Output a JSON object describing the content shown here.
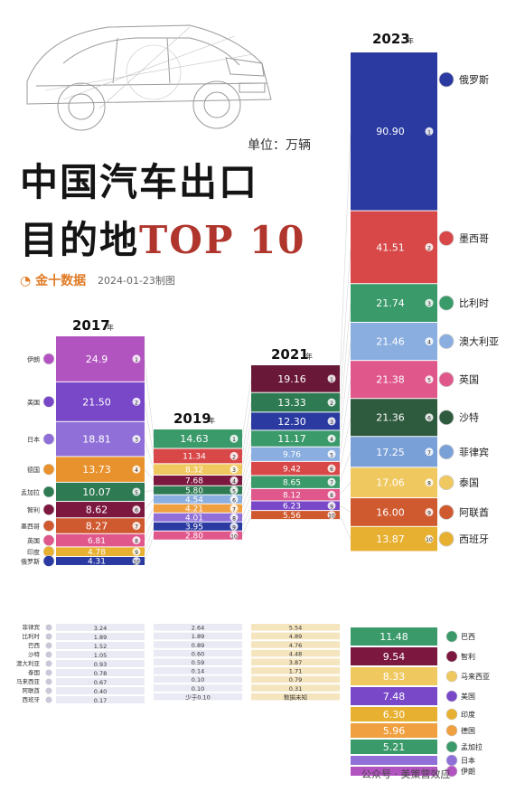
{
  "title_line1": "中国汽车出口",
  "title_line2a": "目的地",
  "title_line2b": "TOP 10",
  "unit": "单位：万辆",
  "brand": "金十数据",
  "date": "2024-01-23制图",
  "footer": "公众号 · 美策营效应",
  "colors": {
    "accent": "#b0352c",
    "brand": "#e07a24"
  },
  "chart_data": {
    "type": "bar",
    "unit": "万辆",
    "columns": [
      {
        "year": "2017",
        "year_suffix": "年",
        "top10": [
          {
            "rank": 1,
            "country": "伊朗",
            "value": "24.9",
            "color": "#b254c0"
          },
          {
            "rank": 2,
            "country": "美国",
            "value": "21.50",
            "color": "#7848c8"
          },
          {
            "rank": 3,
            "country": "日本",
            "value": "18.81",
            "color": "#9070d8"
          },
          {
            "rank": 4,
            "country": "德国",
            "value": "13.73",
            "color": "#e8922e"
          },
          {
            "rank": 5,
            "country": "孟加拉",
            "value": "10.07",
            "color": "#2e7a52"
          },
          {
            "rank": 6,
            "country": "智利",
            "value": "8.62",
            "color": "#7c1840"
          },
          {
            "rank": 7,
            "country": "墨西哥",
            "value": "8.27",
            "color": "#d05a30"
          },
          {
            "rank": 8,
            "country": "英国",
            "value": "6.81",
            "color": "#e0578c"
          },
          {
            "rank": 9,
            "country": "印度",
            "value": "4.78",
            "color": "#e8b030"
          },
          {
            "rank": 10,
            "country": "俄罗斯",
            "value": "4.31",
            "color": "#2a3aa0"
          }
        ],
        "others": [
          {
            "country": "菲律宾",
            "value": "3.24"
          },
          {
            "country": "比利时",
            "value": "1.89"
          },
          {
            "country": "巴西",
            "value": "1.52"
          },
          {
            "country": "沙特",
            "value": "1.05"
          },
          {
            "country": "澳大利亚",
            "value": "0.93"
          },
          {
            "country": "泰国",
            "value": "0.78"
          },
          {
            "country": "马来西亚",
            "value": "0.67"
          },
          {
            "country": "阿联酋",
            "value": "0.40"
          },
          {
            "country": "西班牙",
            "value": "0.17"
          }
        ]
      },
      {
        "year": "2019",
        "year_suffix": "年",
        "top10": [
          {
            "rank": 1,
            "country": "",
            "value": "14.63",
            "color": "#3a9a6a"
          },
          {
            "rank": 2,
            "country": "",
            "value": "11.34",
            "color": "#d84848"
          },
          {
            "rank": 3,
            "country": "",
            "value": "8.32",
            "color": "#f0c860"
          },
          {
            "rank": 4,
            "country": "",
            "value": "7.68",
            "color": "#7c1840"
          },
          {
            "rank": 5,
            "country": "",
            "value": "5.80",
            "color": "#2e7a52"
          },
          {
            "rank": 6,
            "country": "",
            "value": "4.54",
            "color": "#8aaee0"
          },
          {
            "rank": 7,
            "country": "",
            "value": "4.21",
            "color": "#f0a040"
          },
          {
            "rank": 8,
            "country": "",
            "value": "4.01",
            "color": "#9070d8"
          },
          {
            "rank": 9,
            "country": "",
            "value": "3.95",
            "color": "#2a3aa0"
          },
          {
            "rank": 10,
            "country": "",
            "value": "2.80",
            "color": "#e0578c"
          }
        ],
        "others": [
          "2.64",
          "1.89",
          "0.89",
          "0.60",
          "0.59",
          "0.14",
          "0.10",
          "0.10",
          "少于0.10"
        ]
      },
      {
        "year": "2021",
        "year_suffix": "年",
        "top10": [
          {
            "rank": 1,
            "country": "",
            "value": "19.16",
            "color": "#6a1838"
          },
          {
            "rank": 2,
            "country": "",
            "value": "13.33",
            "color": "#2e7a52"
          },
          {
            "rank": 3,
            "country": "",
            "value": "12.30",
            "color": "#2a3aa0"
          },
          {
            "rank": 4,
            "country": "",
            "value": "11.17",
            "color": "#3a9a6a"
          },
          {
            "rank": 5,
            "country": "",
            "value": "9.76",
            "color": "#8aaee0"
          },
          {
            "rank": 6,
            "country": "",
            "value": "9.42",
            "color": "#d84848"
          },
          {
            "rank": 7,
            "country": "",
            "value": "8.65",
            "color": "#3a9a6a"
          },
          {
            "rank": 8,
            "country": "",
            "value": "8.12",
            "color": "#e0578c"
          },
          {
            "rank": 9,
            "country": "",
            "value": "6.23",
            "color": "#7848c8"
          },
          {
            "rank": 10,
            "country": "",
            "value": "5.56",
            "color": "#d05a30"
          }
        ],
        "others": [
          "5.54",
          "4.89",
          "4.76",
          "4.48",
          "3.87",
          "1.71",
          "0.79",
          "0.31",
          "数据未知"
        ]
      },
      {
        "year": "2023",
        "year_suffix": "年",
        "top10": [
          {
            "rank": 1,
            "country": "俄罗斯",
            "value": "90.90",
            "color": "#2a3aa0"
          },
          {
            "rank": 2,
            "country": "墨西哥",
            "value": "41.51",
            "color": "#d84848"
          },
          {
            "rank": 3,
            "country": "比利时",
            "value": "21.74",
            "color": "#3a9a6a"
          },
          {
            "rank": 4,
            "country": "澳大利亚",
            "value": "21.46",
            "color": "#8aaee0"
          },
          {
            "rank": 5,
            "country": "英国",
            "value": "21.38",
            "color": "#e0578c"
          },
          {
            "rank": 6,
            "country": "沙特",
            "value": "21.36",
            "color": "#2e5a3e"
          },
          {
            "rank": 7,
            "country": "菲律宾",
            "value": "17.25",
            "color": "#7aa0d8"
          },
          {
            "rank": 8,
            "country": "泰国",
            "value": "17.06",
            "color": "#f0c860"
          },
          {
            "rank": 9,
            "country": "阿联酋",
            "value": "16.00",
            "color": "#d05a30"
          },
          {
            "rank": 10,
            "country": "西班牙",
            "value": "13.87",
            "color": "#e8b030"
          }
        ],
        "others": [
          {
            "country": "巴西",
            "value": "11.48",
            "color": "#3a9a6a"
          },
          {
            "country": "智利",
            "value": "9.54",
            "color": "#7c1840"
          },
          {
            "country": "马来西亚",
            "value": "8.33",
            "color": "#f0c860"
          },
          {
            "country": "美国",
            "value": "7.48",
            "color": "#7848c8"
          },
          {
            "country": "印度",
            "value": "6.30",
            "color": "#e8b030"
          },
          {
            "country": "德国",
            "value": "5.96",
            "color": "#f0a040"
          },
          {
            "country": "孟加拉",
            "value": "5.21",
            "color": "#3a9a6a"
          },
          {
            "country": "日本",
            "value": "",
            "color": "#9070d8"
          },
          {
            "country": "伊朗",
            "value": "",
            "color": "#b254c0"
          }
        ]
      }
    ]
  }
}
